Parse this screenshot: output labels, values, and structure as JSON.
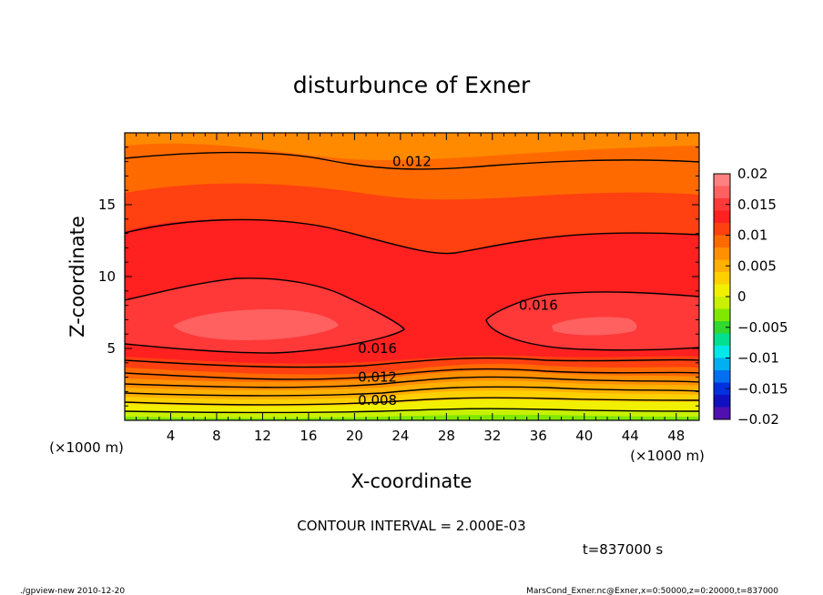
{
  "chart_data": {
    "type": "heatmap",
    "title": "disturbunce of Exner",
    "xlabel": "X-coordinate",
    "ylabel": "Z-coordinate",
    "x_unit": "(×1000 m)",
    "y_unit": "(×1000 m)",
    "xlim": [
      0,
      50
    ],
    "ylim": [
      0,
      20
    ],
    "x_ticks": [
      4,
      8,
      12,
      16,
      20,
      24,
      28,
      32,
      36,
      40,
      44,
      48
    ],
    "y_ticks": [
      5,
      10,
      15
    ],
    "x_tick_labels": [
      "4",
      "8",
      "12",
      "16",
      "20",
      "24",
      "28",
      "32",
      "36",
      "40",
      "44",
      "48"
    ],
    "y_tick_labels": [
      "5",
      "10",
      "15"
    ],
    "contour_interval_label": "CONTOUR INTERVAL = 2.000E-03",
    "time_label": "t=837000 s",
    "contour_labels": [
      {
        "text": "0.012",
        "x": 25,
        "z": 18.0
      },
      {
        "text": "0.016",
        "x": 36,
        "z": 8.0
      },
      {
        "text": "0.016",
        "x": 22,
        "z": 5.0
      },
      {
        "text": "0.012",
        "x": 22,
        "z": 3.0
      },
      {
        "text": "0.008",
        "x": 22,
        "z": 1.4
      }
    ],
    "colorbar": {
      "levels": [
        0.02,
        0.015,
        0.01,
        0.005,
        0,
        -0.005,
        -0.01,
        -0.015,
        -0.02
      ],
      "tick_labels": [
        "0.02",
        "0.015",
        "0.01",
        "0.005",
        "0",
        "−0.005",
        "−0.01",
        "−0.015",
        "−0.02"
      ],
      "colors_top_to_bottom": [
        "#ff8080",
        "#ff6060",
        "#ff3838",
        "#ff2020",
        "#ff4010",
        "#ff6a00",
        "#ff9000",
        "#ffb000",
        "#ffd000",
        "#f0f000",
        "#c8f000",
        "#80e800",
        "#30d830",
        "#00e090",
        "#00e8e8",
        "#00b0f0",
        "#0070f0",
        "#0030e0",
        "#1010c0",
        "#5010b0"
      ]
    }
  },
  "footer": {
    "left": "./gpview-new   2010-12-20",
    "right": "MarsCond_Exner.nc@Exner,x=0:50000,z=0:20000,t=837000"
  }
}
